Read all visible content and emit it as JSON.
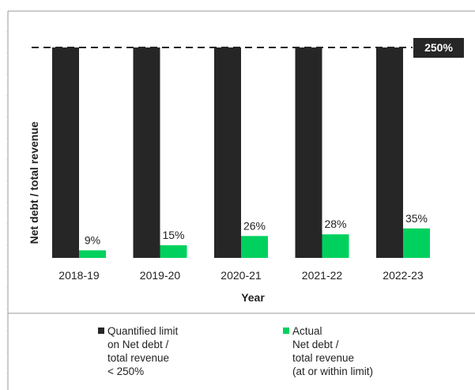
{
  "chart_data": {
    "type": "bar",
    "categories": [
      "2018-19",
      "2019-20",
      "2020-21",
      "2021-22",
      "2022-23"
    ],
    "series": [
      {
        "name": "Quantified limit on Net debt / total revenue < 250%",
        "values": [
          250,
          250,
          250,
          250,
          250
        ],
        "color": "#262626"
      },
      {
        "name": "Actual Net debt / total revenue (at or within limit)",
        "values": [
          9,
          15,
          26,
          28,
          35
        ],
        "color": "#00d15e"
      }
    ],
    "data_labels": [
      "9%",
      "15%",
      "26%",
      "28%",
      "35%"
    ],
    "limit": {
      "value": 250,
      "label": "250%",
      "style": "dashed"
    },
    "xlabel": "Year",
    "ylabel": "Net debt / total revenue",
    "ylim": [
      0,
      250
    ],
    "legend_position": "bottom"
  },
  "legend": {
    "limit_lines": "Quantified limit\non Net debt /\ntotal revenue\n< 250%",
    "actual_lines": "Actual\nNet debt /\ntotal revenue\n(at or within limit)"
  },
  "colors": {
    "limit": "#262626",
    "actual": "#00d15e",
    "frame": "#9a9a9a"
  }
}
